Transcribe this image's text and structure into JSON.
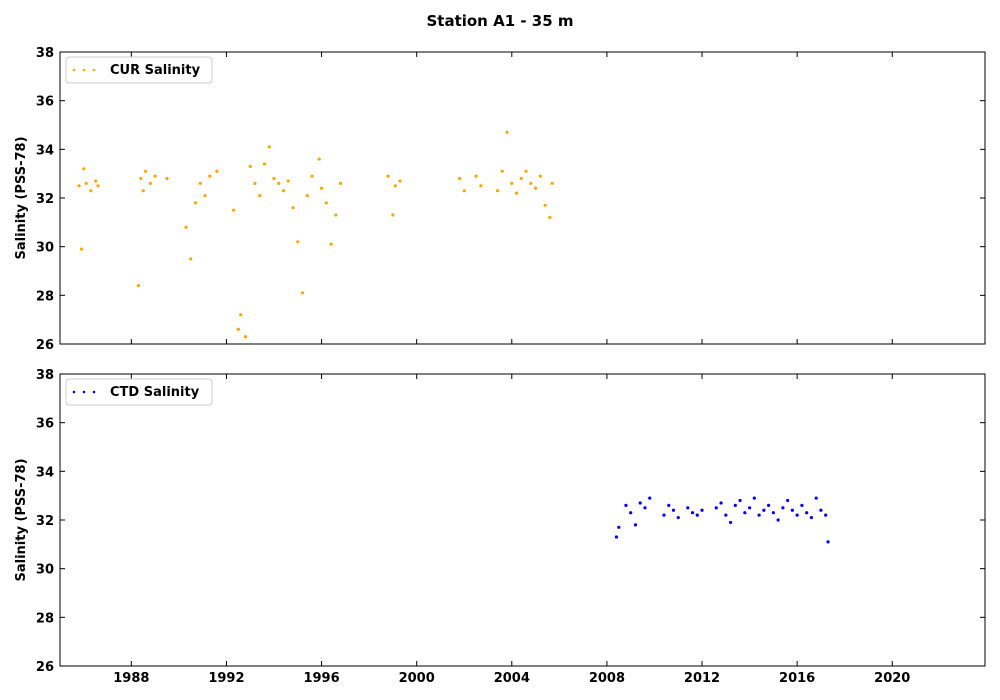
{
  "figure": {
    "title": "Station A1 - 35 m"
  },
  "chart_data": [
    {
      "type": "scatter",
      "ylabel": "Salinity (PSS-78)",
      "xlim": [
        1985.0,
        2023.9
      ],
      "ylim": [
        26,
        38
      ],
      "yticks": [
        26,
        28,
        30,
        32,
        34,
        36,
        38
      ],
      "xticks": [
        1988,
        1992,
        1996,
        2000,
        2004,
        2008,
        2012,
        2016,
        2020
      ],
      "show_xtick_labels": false,
      "legend_position": "upper-left",
      "grid": false,
      "series": [
        {
          "name": "CUR Salinity",
          "color": "#FFA500",
          "x": [
            1985.8,
            1985.9,
            1986.0,
            1986.1,
            1986.3,
            1986.5,
            1986.6,
            1988.3,
            1988.4,
            1988.5,
            1988.6,
            1988.8,
            1989.0,
            1989.5,
            1990.3,
            1990.5,
            1990.7,
            1990.9,
            1991.1,
            1991.3,
            1991.6,
            1992.3,
            1992.5,
            1992.6,
            1992.8,
            1993.0,
            1993.2,
            1993.4,
            1993.6,
            1993.8,
            1994.0,
            1994.2,
            1994.4,
            1994.6,
            1994.8,
            1995.0,
            1995.2,
            1995.4,
            1995.6,
            1995.9,
            1996.0,
            1996.2,
            1996.4,
            1996.6,
            1996.8,
            1998.8,
            1999.0,
            1999.1,
            1999.3,
            2001.8,
            2002.0,
            2002.5,
            2002.7,
            2003.4,
            2003.6,
            2003.8,
            2004.0,
            2004.2,
            2004.4,
            2004.6,
            2004.8,
            2005.0,
            2005.2,
            2005.4,
            2005.6,
            2005.7
          ],
          "y": [
            32.5,
            29.9,
            33.2,
            32.6,
            32.3,
            32.7,
            32.5,
            28.4,
            32.8,
            32.3,
            33.1,
            32.6,
            32.9,
            32.8,
            30.8,
            29.5,
            31.8,
            32.6,
            32.1,
            32.9,
            33.1,
            31.5,
            26.6,
            27.2,
            26.3,
            33.3,
            32.6,
            32.1,
            33.4,
            34.1,
            32.8,
            32.6,
            32.3,
            32.7,
            31.6,
            30.2,
            28.1,
            32.1,
            32.9,
            33.6,
            32.4,
            31.8,
            30.1,
            31.3,
            32.6,
            32.9,
            31.3,
            32.5,
            32.7,
            32.8,
            32.3,
            32.9,
            32.5,
            32.3,
            33.1,
            34.7,
            32.6,
            32.2,
            32.8,
            33.1,
            32.6,
            32.4,
            32.9,
            31.7,
            31.2,
            32.6
          ]
        }
      ]
    },
    {
      "type": "scatter",
      "ylabel": "Salinity (PSS-78)",
      "xlim": [
        1985.0,
        2023.9
      ],
      "ylim": [
        26,
        38
      ],
      "yticks": [
        26,
        28,
        30,
        32,
        34,
        36,
        38
      ],
      "xticks": [
        1988,
        1992,
        1996,
        2000,
        2004,
        2008,
        2012,
        2016,
        2020
      ],
      "show_xtick_labels": true,
      "legend_position": "upper-left",
      "grid": false,
      "series": [
        {
          "name": "CTD Salinity",
          "color": "#0000FF",
          "x": [
            2008.4,
            2008.5,
            2008.8,
            2009.0,
            2009.2,
            2009.4,
            2009.6,
            2009.8,
            2010.4,
            2010.6,
            2010.8,
            2011.0,
            2011.4,
            2011.6,
            2011.8,
            2012.0,
            2012.6,
            2012.8,
            2013.0,
            2013.2,
            2013.4,
            2013.6,
            2013.8,
            2014.0,
            2014.2,
            2014.4,
            2014.6,
            2014.8,
            2015.0,
            2015.2,
            2015.4,
            2015.6,
            2015.8,
            2016.0,
            2016.2,
            2016.4,
            2016.6,
            2016.8,
            2017.0,
            2017.2,
            2017.3
          ],
          "y": [
            31.3,
            31.7,
            32.6,
            32.3,
            31.8,
            32.7,
            32.5,
            32.9,
            32.2,
            32.6,
            32.4,
            32.1,
            32.5,
            32.3,
            32.2,
            32.4,
            32.5,
            32.7,
            32.2,
            31.9,
            32.6,
            32.8,
            32.3,
            32.5,
            32.9,
            32.2,
            32.4,
            32.6,
            32.3,
            32.0,
            32.5,
            32.8,
            32.4,
            32.2,
            32.6,
            32.3,
            32.1,
            32.9,
            32.4,
            32.2,
            31.1
          ]
        }
      ]
    }
  ]
}
